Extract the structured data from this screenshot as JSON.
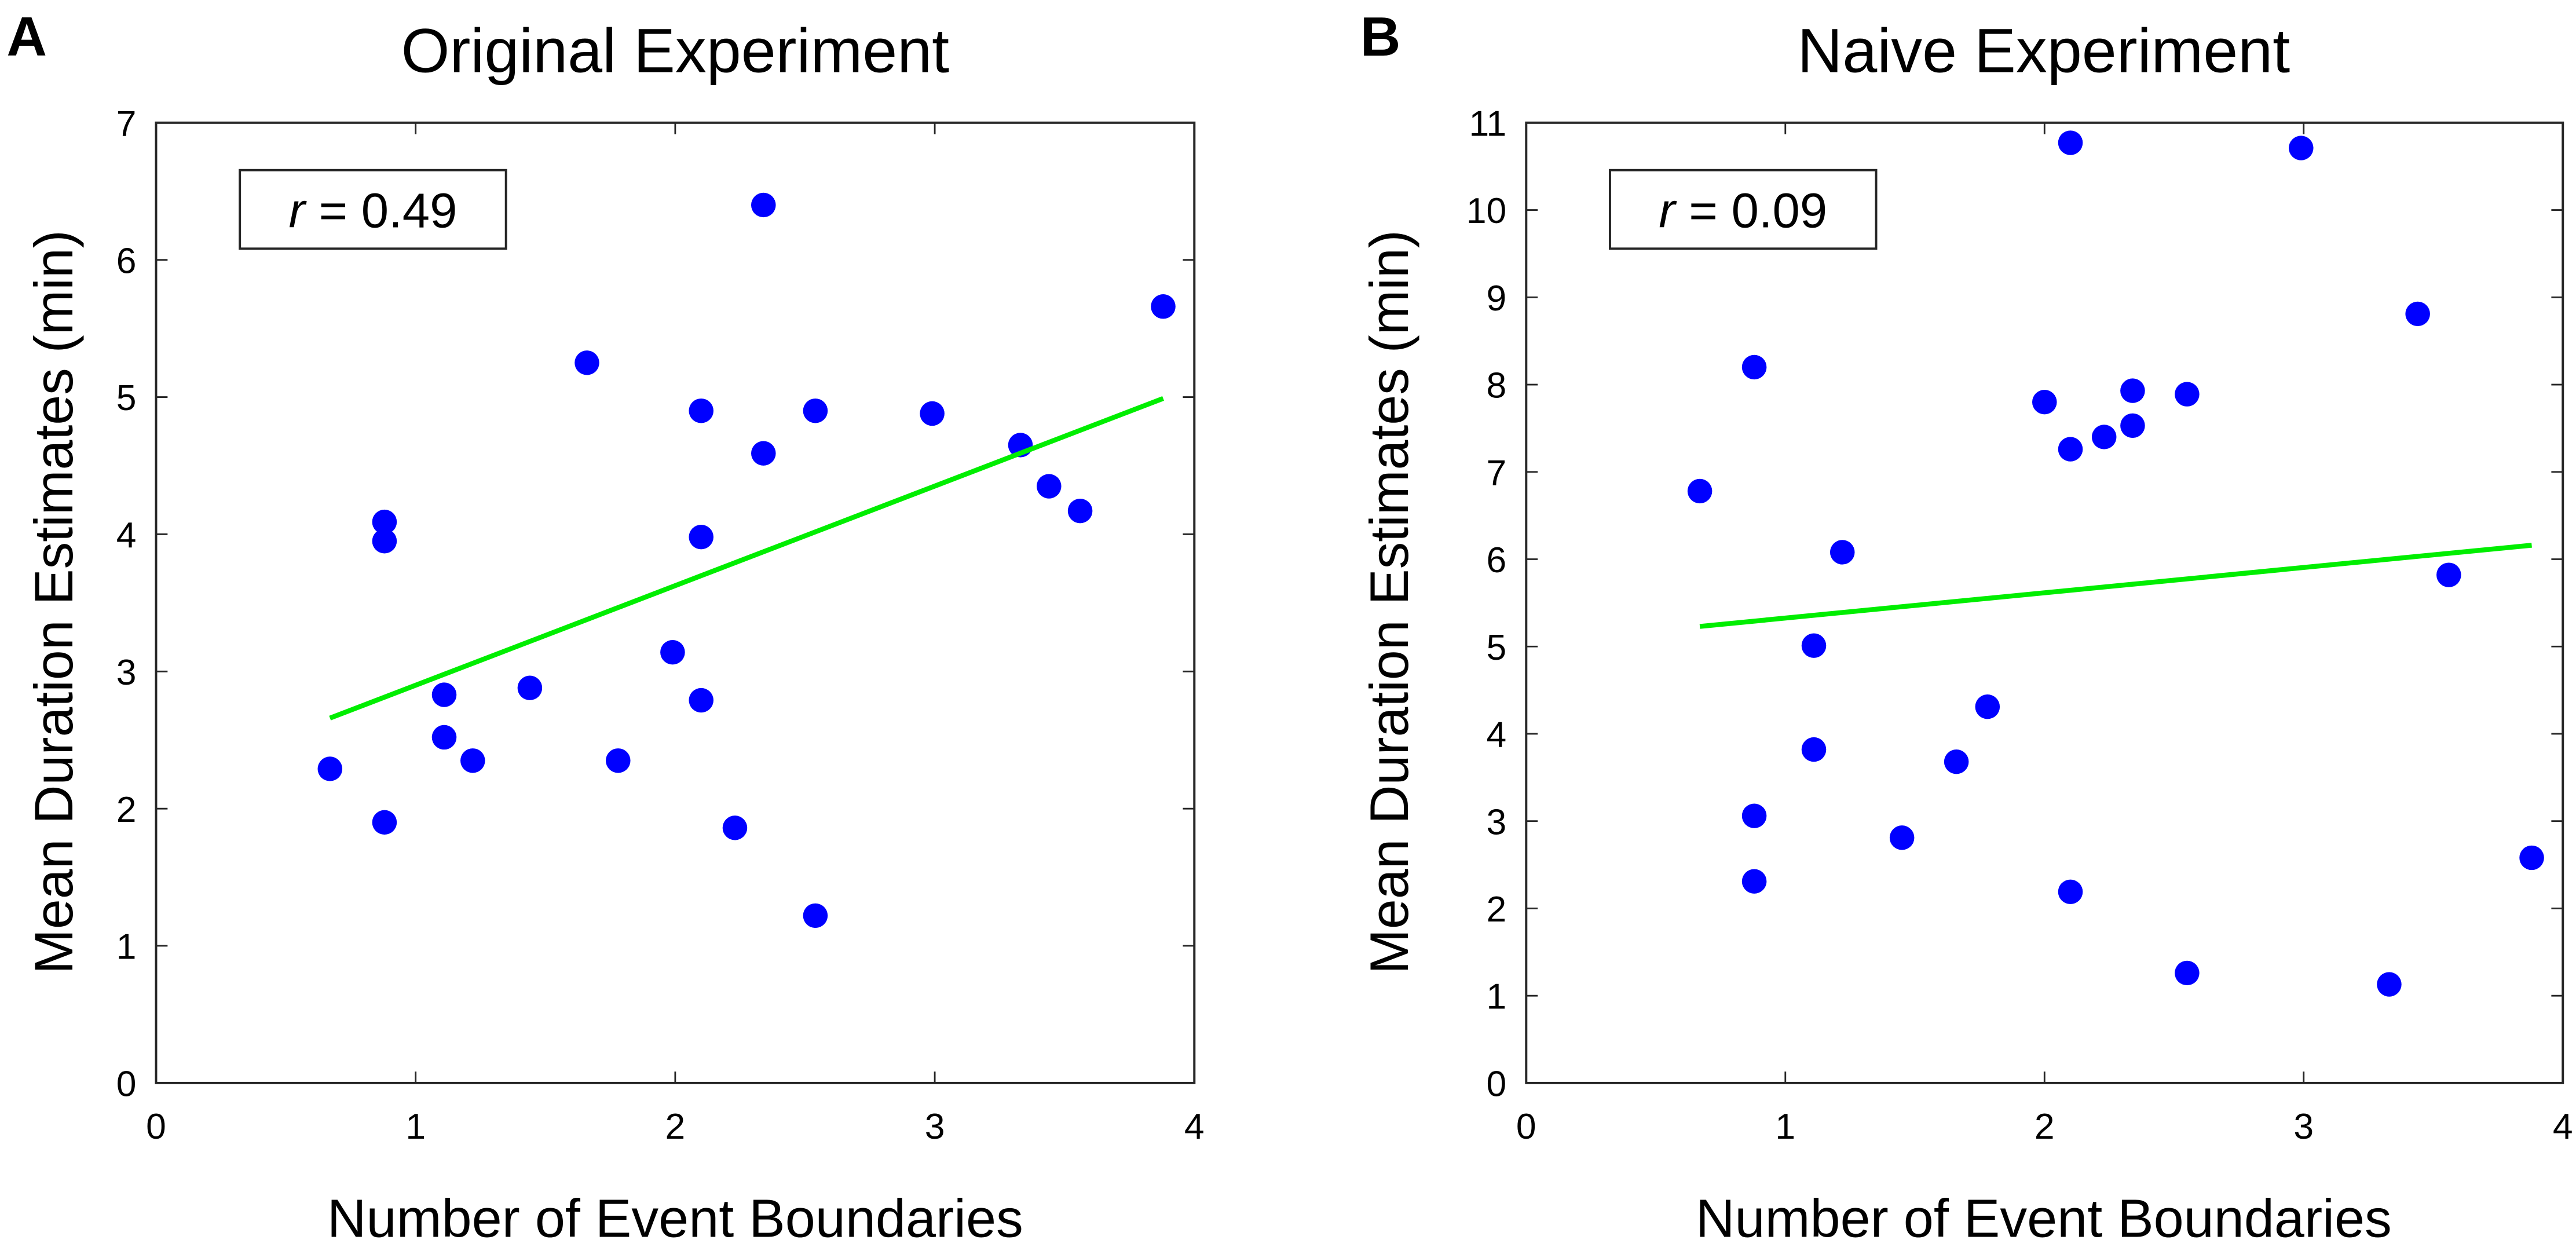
{
  "chart_data": [
    {
      "type": "scatter",
      "panel_label": "A",
      "title": "Original Experiment",
      "xlabel": "Number of Event Boundaries",
      "ylabel": "Mean Duration Estimates (min)",
      "xlim": [
        0,
        4
      ],
      "ylim": [
        0,
        7
      ],
      "xticks": [
        0,
        1,
        2,
        3,
        4
      ],
      "yticks": [
        0,
        1,
        2,
        3,
        4,
        5,
        6,
        7
      ],
      "grid": false,
      "annotation": {
        "italic": "r",
        "text": " = 0.49",
        "location": "top-left"
      },
      "marker_color": "#0000ff",
      "line_color": "#00ee00",
      "points": [
        {
          "x": 0.67,
          "y": 2.29
        },
        {
          "x": 0.88,
          "y": 1.9
        },
        {
          "x": 0.88,
          "y": 4.09
        },
        {
          "x": 0.88,
          "y": 3.95
        },
        {
          "x": 1.11,
          "y": 2.83
        },
        {
          "x": 1.11,
          "y": 2.52
        },
        {
          "x": 1.22,
          "y": 2.35
        },
        {
          "x": 1.44,
          "y": 2.88
        },
        {
          "x": 1.66,
          "y": 5.25
        },
        {
          "x": 1.78,
          "y": 2.35
        },
        {
          "x": 1.99,
          "y": 3.14
        },
        {
          "x": 2.1,
          "y": 4.9
        },
        {
          "x": 2.1,
          "y": 3.98
        },
        {
          "x": 2.1,
          "y": 2.79
        },
        {
          "x": 2.23,
          "y": 1.86
        },
        {
          "x": 2.34,
          "y": 6.4
        },
        {
          "x": 2.34,
          "y": 4.59
        },
        {
          "x": 2.54,
          "y": 4.9
        },
        {
          "x": 2.54,
          "y": 1.22
        },
        {
          "x": 2.99,
          "y": 4.88
        },
        {
          "x": 3.33,
          "y": 4.65
        },
        {
          "x": 3.44,
          "y": 4.35
        },
        {
          "x": 3.56,
          "y": 4.17
        },
        {
          "x": 3.88,
          "y": 5.66
        }
      ],
      "fit_line": {
        "x": [
          0.67,
          3.88
        ],
        "y": [
          2.66,
          4.99
        ]
      }
    },
    {
      "type": "scatter",
      "panel_label": "B",
      "title": "Naive Experiment",
      "xlabel": "Number of Event Boundaries",
      "ylabel": "Mean Duration Estimates (min)",
      "xlim": [
        0,
        4
      ],
      "ylim": [
        0,
        11
      ],
      "xticks": [
        0,
        1,
        2,
        3,
        4
      ],
      "yticks": [
        0,
        1,
        2,
        3,
        4,
        5,
        6,
        7,
        8,
        9,
        10,
        11
      ],
      "grid": false,
      "annotation": {
        "italic": "r",
        "text": " = 0.09",
        "location": "top-left"
      },
      "marker_color": "#0000ff",
      "line_color": "#00ee00",
      "points": [
        {
          "x": 0.67,
          "y": 6.78
        },
        {
          "x": 0.88,
          "y": 8.2
        },
        {
          "x": 0.88,
          "y": 3.06
        },
        {
          "x": 0.88,
          "y": 2.31
        },
        {
          "x": 1.11,
          "y": 5.01
        },
        {
          "x": 1.11,
          "y": 3.82
        },
        {
          "x": 1.22,
          "y": 6.08
        },
        {
          "x": 1.45,
          "y": 2.81
        },
        {
          "x": 1.66,
          "y": 3.68
        },
        {
          "x": 1.78,
          "y": 4.31
        },
        {
          "x": 2.0,
          "y": 7.8
        },
        {
          "x": 2.1,
          "y": 10.77
        },
        {
          "x": 2.1,
          "y": 7.26
        },
        {
          "x": 2.1,
          "y": 2.19
        },
        {
          "x": 2.23,
          "y": 7.4
        },
        {
          "x": 2.34,
          "y": 7.93
        },
        {
          "x": 2.34,
          "y": 7.53
        },
        {
          "x": 2.55,
          "y": 7.89
        },
        {
          "x": 2.55,
          "y": 1.26
        },
        {
          "x": 2.99,
          "y": 10.71
        },
        {
          "x": 3.33,
          "y": 1.13
        },
        {
          "x": 3.44,
          "y": 8.81
        },
        {
          "x": 3.56,
          "y": 5.82
        },
        {
          "x": 3.88,
          "y": 2.58
        }
      ],
      "fit_line": {
        "x": [
          0.67,
          3.88
        ],
        "y": [
          5.23,
          6.16
        ]
      }
    }
  ]
}
